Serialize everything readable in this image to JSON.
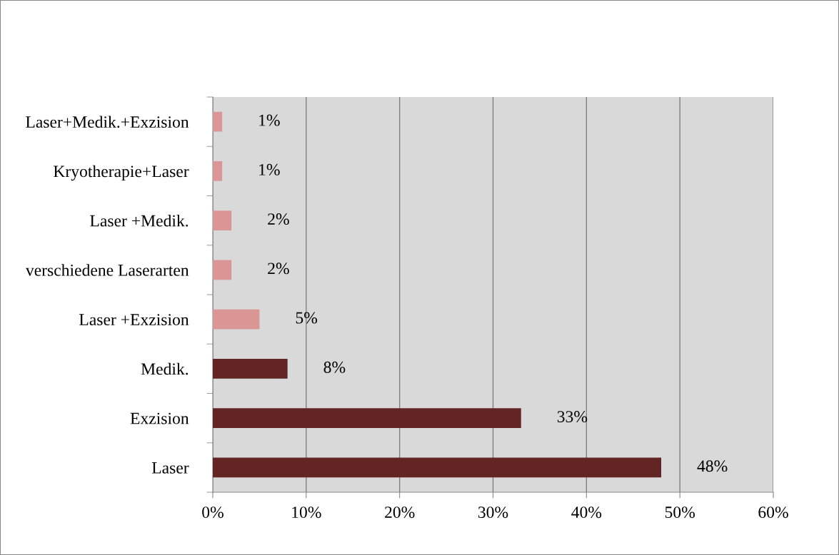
{
  "chart_data": {
    "type": "bar",
    "orientation": "horizontal",
    "categories": [
      "Laser+Medik.+Exzision",
      "Kryotherapie+Laser",
      "Laser +Medik.",
      "verschiedene Laserarten",
      "Laser +Exzision",
      "Medik.",
      "Exzision",
      "Laser"
    ],
    "values": [
      1,
      1,
      2,
      2,
      5,
      8,
      33,
      48
    ],
    "colors": [
      "#d99694",
      "#d99694",
      "#d99694",
      "#d99694",
      "#d99694",
      "#632523",
      "#632523",
      "#632523"
    ],
    "value_labels": [
      "1%",
      "1%",
      "2%",
      "2%",
      "5%",
      "8%",
      "33%",
      "48%"
    ],
    "xlim": [
      0,
      60
    ],
    "xticks": [
      {
        "value": 0,
        "label": "0%"
      },
      {
        "value": 10,
        "label": "10%"
      },
      {
        "value": 20,
        "label": "20%"
      },
      {
        "value": 30,
        "label": "30%"
      },
      {
        "value": 40,
        "label": "40%"
      },
      {
        "value": 50,
        "label": "50%"
      },
      {
        "value": 60,
        "label": "60%"
      }
    ],
    "grid": "x",
    "legend": false
  }
}
